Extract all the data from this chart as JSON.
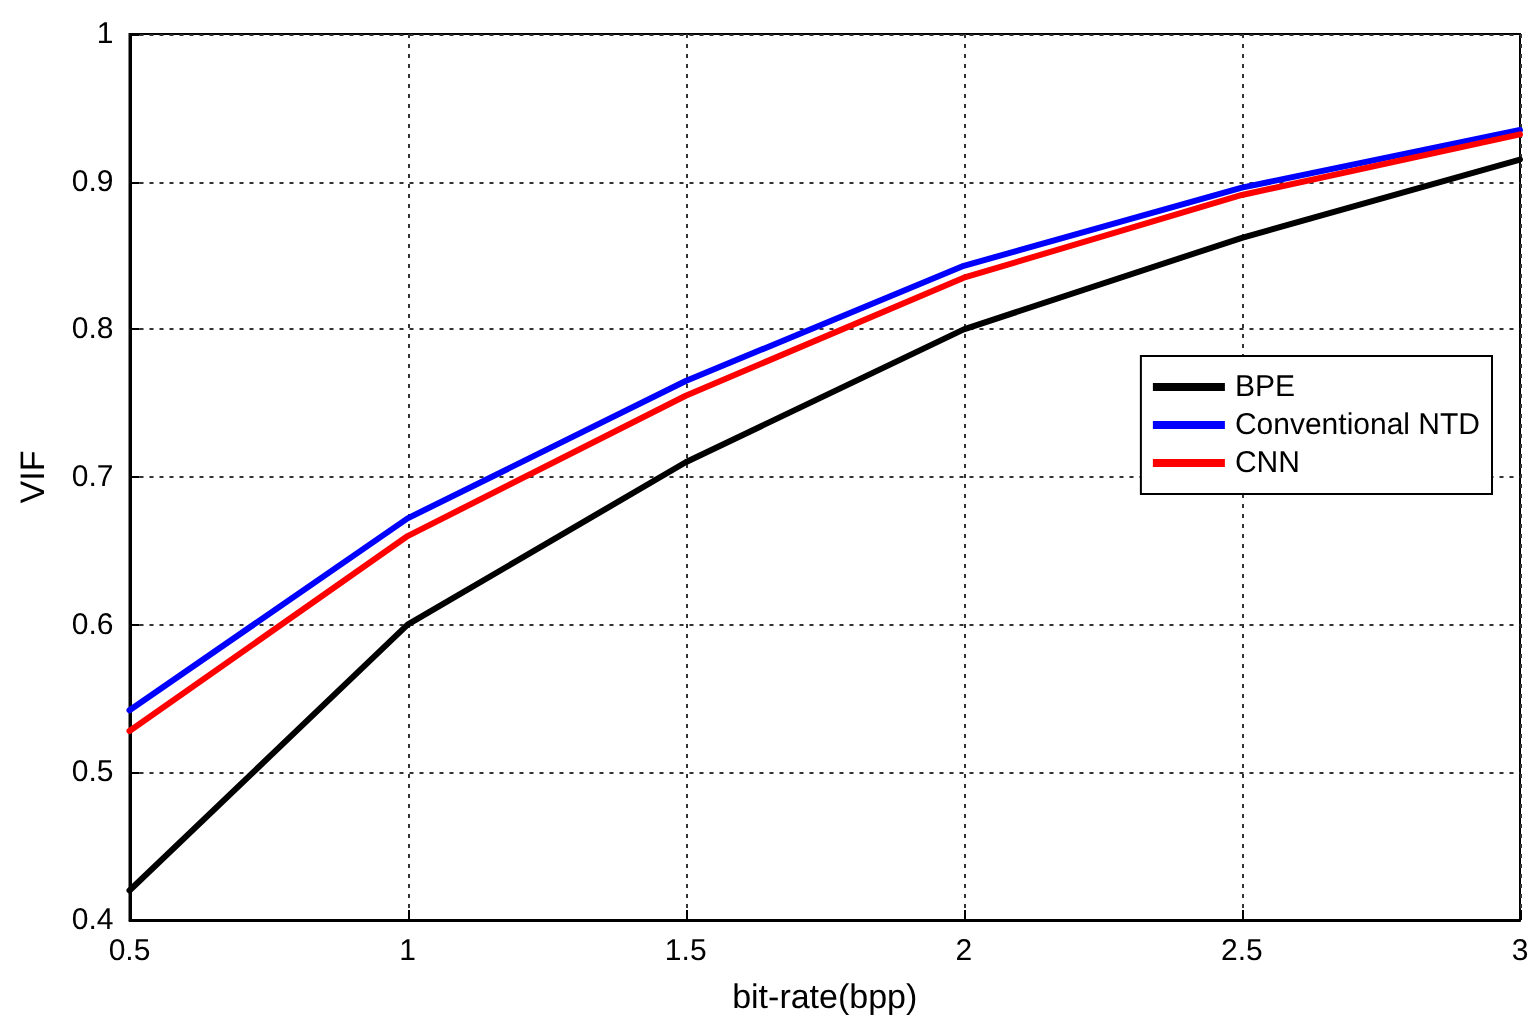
{
  "chart_data": {
    "type": "line",
    "xlabel": "bit-rate(bpp)",
    "ylabel": "VIF",
    "x": [
      0.5,
      1,
      1.5,
      2,
      2.5,
      3
    ],
    "series": [
      {
        "name": "BPE",
        "color": "#000000",
        "values": [
          0.42,
          0.6,
          0.71,
          0.8,
          0.862,
          0.915
        ]
      },
      {
        "name": "Conventional NTD",
        "color": "#0000ff",
        "values": [
          0.542,
          0.672,
          0.765,
          0.843,
          0.896,
          0.935
        ]
      },
      {
        "name": "CNN",
        "color": "#ff0000",
        "values": [
          0.528,
          0.66,
          0.755,
          0.835,
          0.891,
          0.932
        ]
      }
    ],
    "xlim": [
      0.5,
      3
    ],
    "xticks": [
      0.5,
      1,
      1.5,
      2,
      2.5,
      3
    ],
    "ylim": [
      0.4,
      1
    ],
    "yticks": [
      0.4,
      0.5,
      0.6,
      0.7,
      0.8,
      0.9,
      1
    ],
    "grid": true,
    "legend": "right",
    "marker": "none",
    "line_style": "solid"
  }
}
